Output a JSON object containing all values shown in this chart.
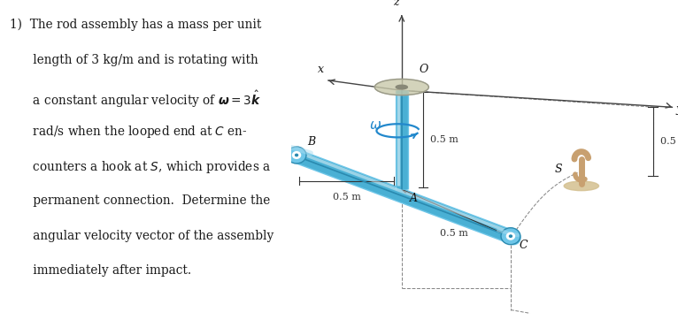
{
  "background_color": "#ffffff",
  "text_color": "#1a1a1a",
  "blue_rod_color": "#6ec6e8",
  "blue_rod_dark": "#2a8ab0",
  "blue_rod_mid": "#4ab0d4",
  "axis_color": "#444444",
  "dim_line_color": "#333333",
  "hook_color": "#c8a070",
  "hook_base_color": "#d4b888",
  "omega_color": "#2288cc",
  "label_color": "#111111",
  "fig_width": 7.66,
  "fig_height": 3.79,
  "text_lines": [
    "1)  The rod assembly has a mass per unit",
    "      length of 3 kg/m and is rotating with",
    "      a constant angular velocity of $\\boldsymbol{\\omega} = 3\\hat{\\boldsymbol{k}}$",
    "      rad/s when the looped end at $C$ en-",
    "      counters a hook at $S$, which provides a",
    "      permanent connection.  Determine the",
    "      angular velocity vector of the assembly",
    "      immediately after impact."
  ]
}
